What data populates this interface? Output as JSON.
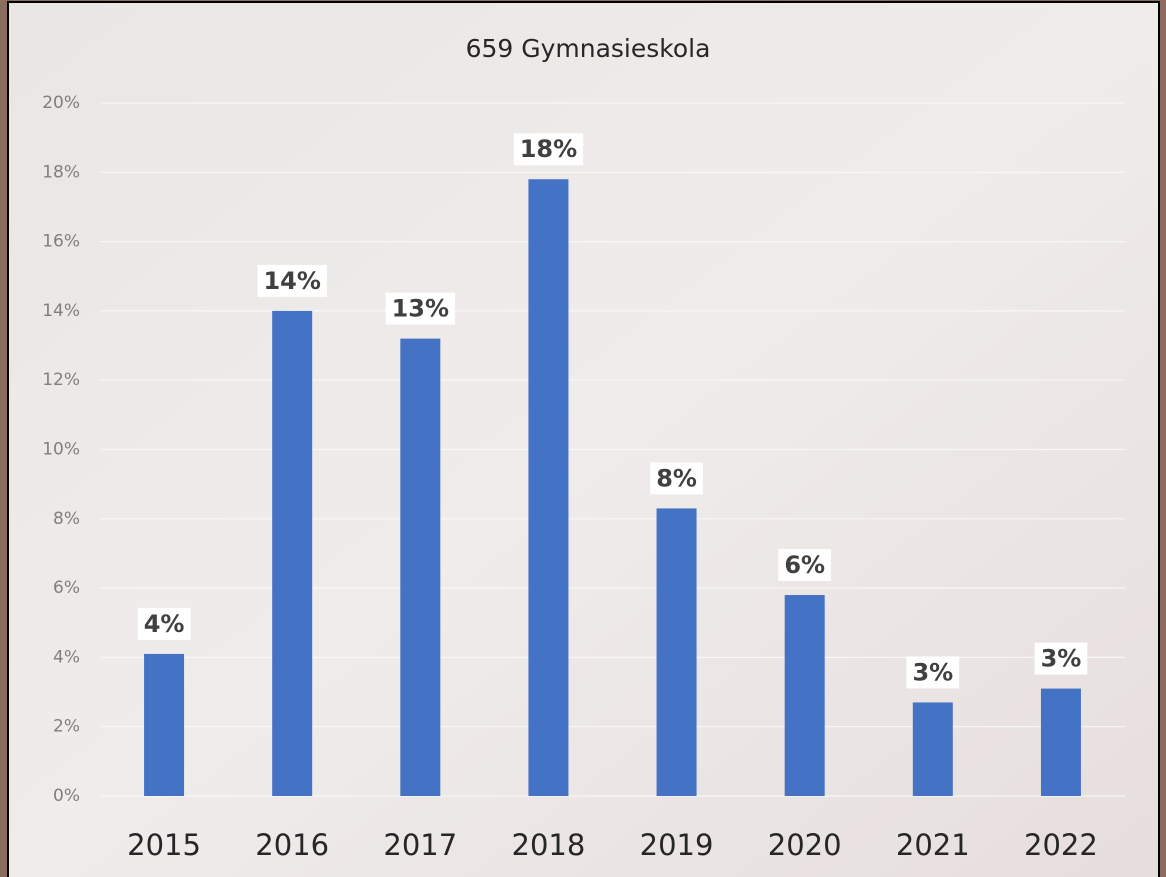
{
  "chart_data": {
    "type": "bar",
    "title": "659 Gymnasieskola",
    "categories": [
      "2015",
      "2016",
      "2017",
      "2018",
      "2019",
      "2020",
      "2021",
      "2022"
    ],
    "values": [
      4.1,
      14.0,
      13.2,
      17.8,
      8.3,
      5.8,
      2.7,
      3.1
    ],
    "value_labels": [
      "4%",
      "14%",
      "13%",
      "18%",
      "8%",
      "6%",
      "3%",
      "3%"
    ],
    "color": "#4472c4",
    "ylim": [
      0,
      20
    ],
    "yticks": [
      {
        "value": 0,
        "label": "0%"
      },
      {
        "value": 2,
        "label": "2%"
      },
      {
        "value": 4,
        "label": "4%"
      },
      {
        "value": 6,
        "label": "6%"
      },
      {
        "value": 8,
        "label": "8%"
      },
      {
        "value": 10,
        "label": "10%"
      },
      {
        "value": 12,
        "label": "12%"
      },
      {
        "value": 14,
        "label": "14%"
      },
      {
        "value": 16,
        "label": "16%"
      },
      {
        "value": 18,
        "label": "18%"
      },
      {
        "value": 20,
        "label": "20%"
      }
    ],
    "grid": true
  }
}
